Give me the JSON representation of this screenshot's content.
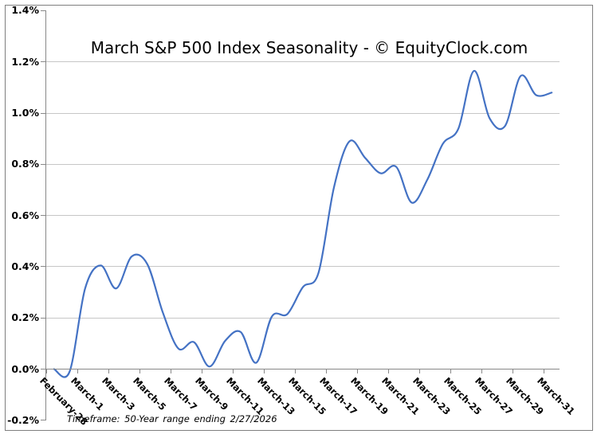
{
  "title": "March S&P 500 Index Seasonality - © EquityClock.com",
  "footnote": "Timeframe: 50-Year range ending 2/27/2026",
  "chart_data": {
    "type": "line",
    "title": "March S&P 500 Index Seasonality - © EquityClock.com",
    "xlabel": "",
    "ylabel": "",
    "unit": "%",
    "ylim": [
      -0.2,
      1.4
    ],
    "ytick_step": 0.2,
    "grid": true,
    "legend": false,
    "line_color": "#4472c4",
    "grid_color": "#c6c6c6",
    "axis_color": "#888888",
    "smoothed": true,
    "categories": [
      "February-28",
      "February-29",
      "March-1",
      "March-2",
      "March-3",
      "March-4",
      "March-5",
      "March-6",
      "March-7",
      "March-8",
      "March-9",
      "March-10",
      "March-11",
      "March-12",
      "March-13",
      "March-14",
      "March-15",
      "March-16",
      "March-17",
      "March-18",
      "March-19",
      "March-20",
      "March-21",
      "March-22",
      "March-23",
      "March-24",
      "March-25",
      "March-26",
      "March-27",
      "March-28",
      "March-29",
      "March-30",
      "March-31"
    ],
    "values": [
      0.0,
      -0.01,
      0.315,
      0.405,
      0.315,
      0.44,
      0.41,
      0.22,
      0.08,
      0.105,
      0.01,
      0.11,
      0.145,
      0.025,
      0.205,
      0.215,
      0.32,
      0.375,
      0.71,
      0.89,
      0.825,
      0.765,
      0.79,
      0.65,
      0.74,
      0.88,
      0.94,
      1.165,
      0.98,
      0.95,
      1.145,
      1.07,
      1.08
    ],
    "x_tick_labels": [
      "February-28",
      "March-1",
      "March-3",
      "March-5",
      "March-7",
      "March-9",
      "March-11",
      "March-13",
      "March-15",
      "March-17",
      "March-19",
      "March-21",
      "March-23",
      "March-25",
      "March-27",
      "March-29",
      "March-31"
    ],
    "x_label_interval": 2,
    "y_tick_labels": [
      "1.4%",
      "1.2%",
      "1.0%",
      "0.8%",
      "0.6%",
      "0.4%",
      "0.2%",
      "0.0%",
      "-0.2%"
    ],
    "y_tick_values": [
      1.4,
      1.2,
      1.0,
      0.8,
      0.6,
      0.4,
      0.2,
      0.0,
      -0.2
    ],
    "gridline_values": [
      1.2,
      1.0,
      0.8,
      0.6,
      0.4,
      0.2
    ]
  }
}
